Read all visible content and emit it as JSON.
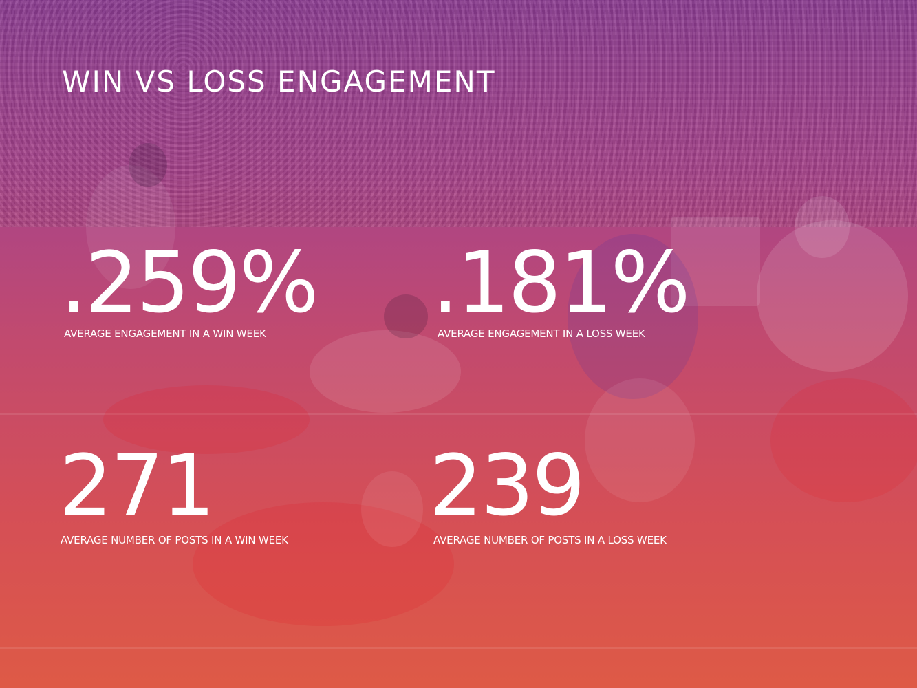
{
  "slide": {
    "title": "WIN VS LOSS ENGAGEMENT",
    "stats": [
      {
        "value": ".259%",
        "label": "AVERAGE ENGAGEMENT IN A WIN WEEK"
      },
      {
        "value": ".181%",
        "label": "AVERAGE ENGAGEMENT IN A LOSS WEEK"
      },
      {
        "value": "271",
        "label": "AVERAGE NUMBER OF POSTS IN A WIN WEEK"
      },
      {
        "value": "239",
        "label": "AVERAGE NUMBER OF POSTS IN A LOSS WEEK"
      }
    ]
  },
  "colors": {
    "overlay_top": "#8e3f93",
    "overlay_bottom": "#de5a46",
    "text": "#ffffff"
  },
  "background": {
    "image": "football-game-photo"
  }
}
